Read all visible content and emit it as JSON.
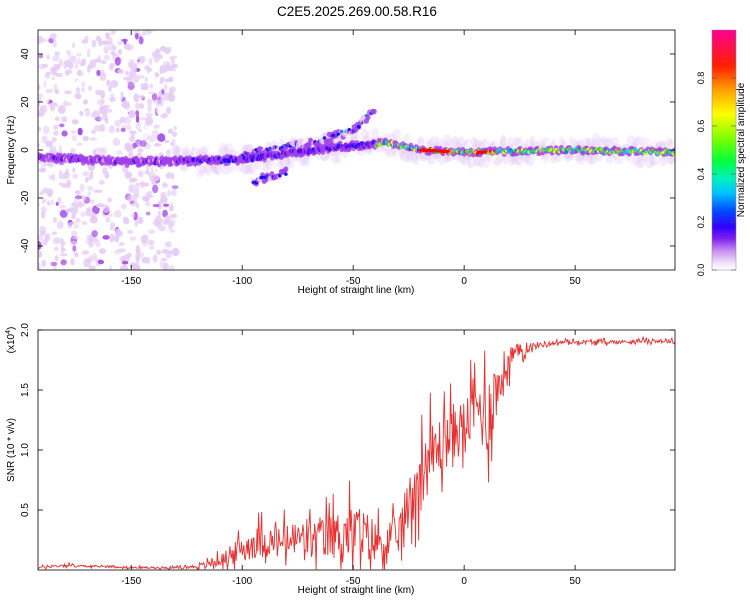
{
  "title": "C2E5.2025.269.00.58.R16",
  "chart_data": [
    {
      "type": "heatmap",
      "xlabel": "Height of straight line (km)",
      "ylabel": "Frequency (Hz)",
      "xlim": [
        -192,
        95
      ],
      "ylim": [
        -50,
        50
      ],
      "xticks": [
        -150,
        -100,
        -50,
        0,
        50
      ],
      "yticks": [
        -40,
        -20,
        0,
        20,
        40
      ],
      "colorbar": {
        "label": "Normalized spectral amplitude",
        "range": [
          0,
          1
        ],
        "ticks": [
          0.0,
          0.2,
          0.4,
          0.6,
          0.8
        ],
        "colormap": [
          "#ffffff",
          "#e6ccf5",
          "#a040e8",
          "#5a00f0",
          "#0000ff",
          "#0080ff",
          "#00e0ff",
          "#00ff60",
          "#80ff00",
          "#ffff00",
          "#ffa000",
          "#ff0000",
          "#ff00a0"
        ]
      },
      "features": [
        {
          "name": "main trace",
          "x": [
            -192,
            -150,
            -100,
            -60,
            -35,
            -20,
            0,
            50,
            95
          ],
          "y": [
            -3,
            -5,
            -4,
            1,
            3,
            0,
            -1,
            0,
            -1
          ]
        },
        {
          "name": "upper branch",
          "x": [
            -100,
            -70,
            -50,
            -40
          ],
          "y": [
            -2,
            3,
            8,
            17
          ]
        },
        {
          "name": "lower branch",
          "x": [
            -95,
            -80
          ],
          "y": [
            -13,
            -9
          ]
        },
        {
          "name": "noise band",
          "x": [
            -192,
            -130
          ],
          "y": [
            -50,
            50
          ]
        }
      ]
    },
    {
      "type": "line",
      "xlabel": "Height of straight line (km)",
      "ylabel": "SNR (10 * v/v)",
      "yscale_label": "(x10",
      "yscale_exp": "4",
      "xlim": [
        -192,
        95
      ],
      "ylim": [
        0,
        2.0
      ],
      "xticks": [
        -150,
        -100,
        -50,
        0,
        50
      ],
      "yticks": [
        0.5,
        1.0,
        1.5,
        2.0
      ],
      "series": [
        {
          "name": "SNR",
          "color": "#e83030",
          "x": [
            -192,
            -180,
            -170,
            -160,
            -150,
            -140,
            -130,
            -120,
            -115,
            -110,
            -105,
            -100,
            -95,
            -90,
            -85,
            -80,
            -75,
            -70,
            -65,
            -60,
            -55,
            -50,
            -45,
            -40,
            -35,
            -30,
            -25,
            -20,
            -15,
            -10,
            -5,
            0,
            5,
            10,
            15,
            20,
            25,
            30,
            35,
            40,
            45,
            50,
            60,
            70,
            80,
            90,
            95
          ],
          "y": [
            0.02,
            0.04,
            0.03,
            0.03,
            0.02,
            0.02,
            0.02,
            0.03,
            0.05,
            0.08,
            0.12,
            0.18,
            0.22,
            0.25,
            0.22,
            0.24,
            0.26,
            0.25,
            0.27,
            0.28,
            0.3,
            0.32,
            0.28,
            0.25,
            0.22,
            0.28,
            0.55,
            0.8,
            0.95,
            1.05,
            1.15,
            1.2,
            1.35,
            1.3,
            1.5,
            1.75,
            1.82,
            1.86,
            1.88,
            1.89,
            1.9,
            1.9,
            1.9,
            1.9,
            1.91,
            1.91,
            1.9
          ],
          "noise": [
            0.01,
            0.02,
            0.01,
            0.01,
            0.01,
            0.01,
            0.01,
            0.02,
            0.04,
            0.06,
            0.1,
            0.14,
            0.16,
            0.18,
            0.16,
            0.18,
            0.2,
            0.19,
            0.22,
            0.24,
            0.26,
            0.3,
            0.28,
            0.22,
            0.18,
            0.2,
            0.28,
            0.35,
            0.35,
            0.3,
            0.3,
            0.28,
            0.3,
            0.45,
            0.3,
            0.18,
            0.08,
            0.04,
            0.03,
            0.02,
            0.02,
            0.02,
            0.02,
            0.02,
            0.02,
            0.02,
            0.02
          ]
        }
      ]
    }
  ]
}
